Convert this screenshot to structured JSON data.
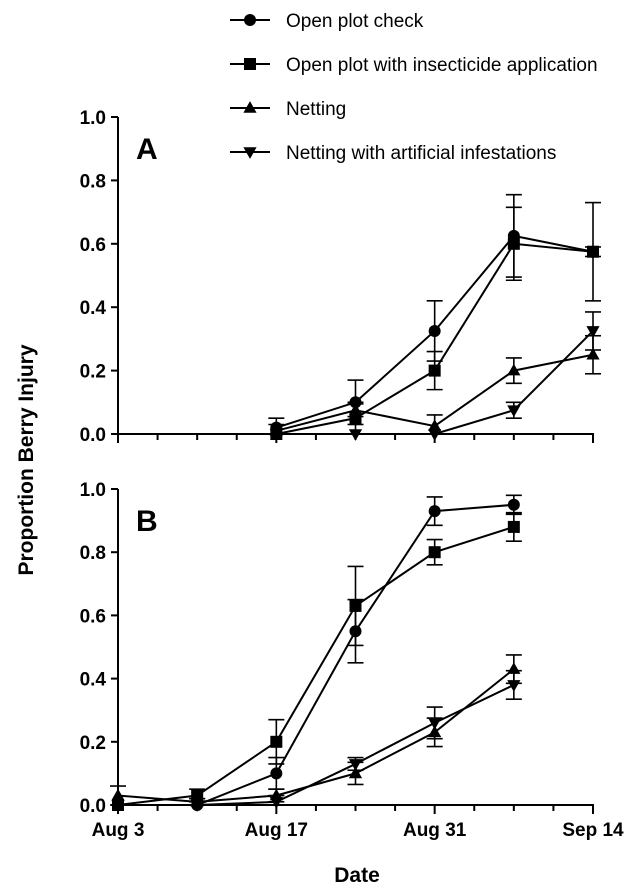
{
  "chart_data": {
    "type": "line",
    "x_axis": {
      "label": "Date",
      "tick_labels": [
        "Aug 3",
        "Aug 17",
        "Aug 31",
        "Sep 14"
      ],
      "tick_days": [
        3,
        17,
        31,
        45
      ],
      "range_days": [
        3,
        45
      ]
    },
    "y_axis": {
      "label": "Proportion Berry Injury",
      "ticks": [
        "0.0",
        "0.2",
        "0.4",
        "0.6",
        "0.8",
        "1.0"
      ],
      "ylim": [
        0,
        1.0
      ]
    },
    "legend": {
      "placement": "top",
      "entries": [
        {
          "name": "Open plot check",
          "marker": "circle"
        },
        {
          "name": "Open plot with insecticide application",
          "marker": "square"
        },
        {
          "name": "Netting",
          "marker": "triangle-up"
        },
        {
          "name": "Netting with artificial infestations",
          "marker": "triangle-down"
        }
      ]
    },
    "panels": [
      {
        "label": "A",
        "series": [
          {
            "name": "Open plot check",
            "x": [
              "Aug 17",
              "Aug 24",
              "Aug 31",
              "Sep 7",
              "Sep 14"
            ],
            "y": [
              0.02,
              0.1,
              0.325,
              0.625,
              0.575
            ],
            "err": [
              0.03,
              0.07,
              0.095,
              0.13,
              0.155
            ]
          },
          {
            "name": "Open plot with insecticide application",
            "x": [
              "Aug 17",
              "Aug 24",
              "Aug 31",
              "Sep 7",
              "Sep 14"
            ],
            "y": [
              0.0,
              0.05,
              0.2,
              0.6,
              0.575
            ],
            "err": [
              0.0,
              0.05,
              0.06,
              0.115,
              0.015
            ]
          },
          {
            "name": "Netting",
            "x": [
              "Aug 17",
              "Aug 24",
              "Aug 31",
              "Sep 7",
              "Sep 14"
            ],
            "y": [
              0.01,
              0.075,
              0.025,
              0.2,
              0.25
            ],
            "err": [
              0.02,
              0.02,
              0.035,
              0.04,
              0.06
            ]
          },
          {
            "name": "Netting with artificial infestations",
            "x": [
              "Aug 17",
              "Aug 24",
              "Aug 31",
              "Sep 7",
              "Sep 14"
            ],
            "y": [
              0.0,
              0.0,
              0.0,
              0.075,
              0.325
            ],
            "err": [
              0.0,
              0.0,
              0.0,
              0.025,
              0.06
            ]
          }
        ]
      },
      {
        "label": "B",
        "series": [
          {
            "name": "Open plot check",
            "x": [
              "Aug 3",
              "Aug 10",
              "Aug 17",
              "Aug 24",
              "Aug 31",
              "Sep 7"
            ],
            "y": [
              0.0,
              0.0,
              0.1,
              0.55,
              0.93,
              0.95
            ],
            "err": [
              0.0,
              0.02,
              0.05,
              0.1,
              0.045,
              0.03
            ]
          },
          {
            "name": "Open plot with insecticide application",
            "x": [
              "Aug 3",
              "Aug 10",
              "Aug 17",
              "Aug 24",
              "Aug 31",
              "Sep 7"
            ],
            "y": [
              0.0,
              0.03,
              0.2,
              0.63,
              0.8,
              0.88
            ],
            "err": [
              0.0,
              0.02,
              0.07,
              0.125,
              0.04,
              0.045
            ]
          },
          {
            "name": "Netting",
            "x": [
              "Aug 3",
              "Aug 10",
              "Aug 17",
              "Aug 24",
              "Aug 31",
              "Sep 7"
            ],
            "y": [
              0.03,
              0.01,
              0.03,
              0.1,
              0.23,
              0.43
            ],
            "err": [
              0.03,
              0.01,
              0.02,
              0.035,
              0.045,
              0.045
            ]
          },
          {
            "name": "Netting with artificial infestations",
            "x": [
              "Aug 3",
              "Aug 10",
              "Aug 17",
              "Aug 24",
              "Aug 31",
              "Sep 7"
            ],
            "y": [
              0.0,
              0.0,
              0.01,
              0.13,
              0.26,
              0.38
            ],
            "err": [
              0.0,
              0.0,
              0.02,
              0.02,
              0.05,
              0.045
            ]
          }
        ]
      }
    ]
  }
}
